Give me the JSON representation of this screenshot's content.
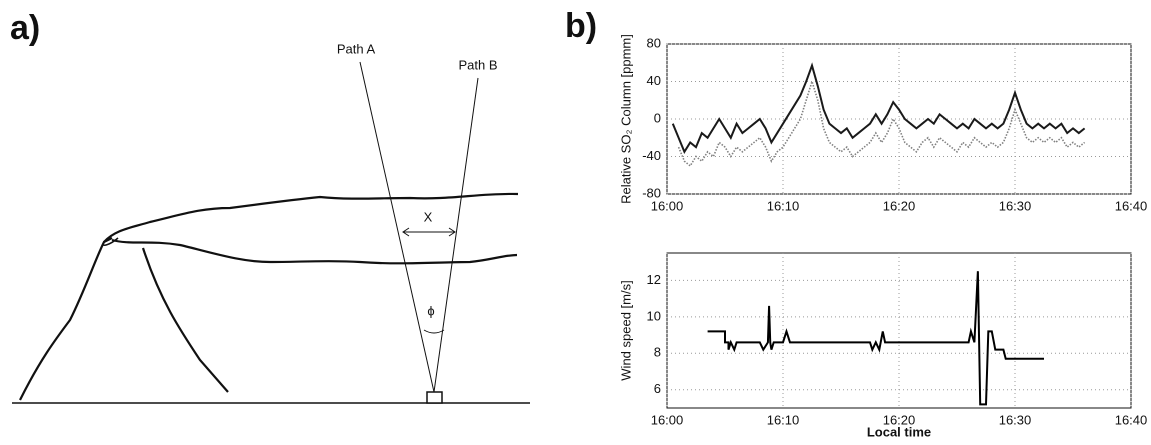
{
  "panel_a": {
    "label": "a)",
    "path_a": "Path A",
    "path_b": "Path B",
    "distance": "X",
    "angle": "ϕ"
  },
  "panel_b_label": "b)",
  "chart_data": [
    {
      "type": "line",
      "ylabel": "Relative SO₂ Column [ppmm]",
      "grid": true,
      "x": [
        0.5,
        1,
        1.5,
        2,
        2.5,
        3,
        3.5,
        4,
        4.5,
        5,
        5.5,
        6,
        6.5,
        7,
        7.5,
        8,
        8.5,
        9,
        9.5,
        10,
        10.5,
        11,
        11.5,
        12,
        12.5,
        13,
        13.5,
        14,
        14.5,
        15,
        15.5,
        16,
        16.5,
        17,
        17.5,
        18,
        18.5,
        19,
        19.5,
        20,
        20.5,
        21,
        21.5,
        22,
        22.5,
        23,
        23.5,
        24,
        24.5,
        25,
        25.5,
        26,
        26.5,
        27,
        27.5,
        28,
        28.5,
        29,
        29.5,
        30,
        30.5,
        31,
        31.5,
        32,
        32.5,
        33,
        33.5,
        34,
        34.5,
        35,
        35.5,
        36
      ],
      "xlim": [
        0,
        40
      ],
      "xticks": [
        {
          "value": 0,
          "label": "16:00"
        },
        {
          "value": 10,
          "label": "16:10"
        },
        {
          "value": 20,
          "label": "16:20"
        },
        {
          "value": 30,
          "label": "16:30"
        },
        {
          "value": 40,
          "label": "16:40"
        }
      ],
      "ylim": [
        -80,
        80
      ],
      "yticks": [
        -80,
        -40,
        0,
        40,
        80
      ],
      "series": [
        {
          "color": "#1a1a1a",
          "linestyle": "solid",
          "values": [
            -5,
            -20,
            -35,
            -25,
            -30,
            -15,
            -20,
            -10,
            0,
            -10,
            -20,
            -5,
            -15,
            -10,
            -5,
            0,
            -10,
            -25,
            -15,
            -5,
            5,
            15,
            25,
            40,
            57,
            35,
            10,
            -5,
            -10,
            -15,
            -10,
            -20,
            -15,
            -10,
            -5,
            5,
            -5,
            5,
            18,
            10,
            0,
            -5,
            -10,
            -5,
            0,
            -5,
            5,
            0,
            -5,
            -10,
            -5,
            -10,
            0,
            -5,
            -10,
            -5,
            -10,
            -5,
            10,
            28,
            10,
            -5,
            -10,
            -5,
            -10,
            -5,
            -10,
            -5,
            -15,
            -10,
            -15,
            -10
          ]
        },
        {
          "color": "#808080",
          "linestyle": "dotted",
          "values": [
            null,
            -30,
            -45,
            -50,
            -40,
            -45,
            -35,
            -40,
            -25,
            -30,
            -40,
            -30,
            -35,
            -30,
            -25,
            -20,
            -30,
            -45,
            -35,
            -30,
            -20,
            -10,
            0,
            20,
            40,
            20,
            -10,
            -25,
            -30,
            -35,
            -30,
            -40,
            -35,
            -30,
            -25,
            -15,
            -25,
            -15,
            0,
            -10,
            -25,
            -30,
            -35,
            -25,
            -20,
            -30,
            -20,
            -25,
            -30,
            -35,
            -25,
            -30,
            -20,
            -25,
            -30,
            -25,
            -30,
            -25,
            -10,
            10,
            -5,
            -20,
            -25,
            -20,
            -25,
            -20,
            -25,
            -20,
            -30,
            -25,
            -30,
            -25
          ]
        }
      ]
    },
    {
      "type": "line",
      "ylabel": "Wind speed [m/s]",
      "xlabel": "Local time",
      "grid": true,
      "x": [
        3.5,
        5,
        5,
        5.3,
        5.3,
        5.5,
        5.8,
        6,
        8,
        8.3,
        8.7,
        8.8,
        8.9,
        9,
        9.2,
        10,
        10.3,
        10.6,
        17.5,
        17.7,
        18,
        18.3,
        18.6,
        18.8,
        26,
        26.2,
        26.5,
        26.8,
        27,
        27.5,
        27.7,
        28,
        28.3,
        29,
        29.2,
        32.5
      ],
      "xlim": [
        0,
        40
      ],
      "xticks": [
        {
          "value": 0,
          "label": "16:00"
        },
        {
          "value": 10,
          "label": "16:10"
        },
        {
          "value": 20,
          "label": "16:20"
        },
        {
          "value": 30,
          "label": "16:30"
        },
        {
          "value": 40,
          "label": "16:40"
        }
      ],
      "ylim": [
        5,
        13.5
      ],
      "yticks": [
        6,
        8,
        10,
        12
      ],
      "series": [
        {
          "color": "#000000",
          "linestyle": "solid",
          "values": [
            9.2,
            9.2,
            8.6,
            8.6,
            8.2,
            8.6,
            8.2,
            8.6,
            8.6,
            8.2,
            8.6,
            10.6,
            8.6,
            8.2,
            8.6,
            8.6,
            9.2,
            8.6,
            8.6,
            8.2,
            8.6,
            8.2,
            9.2,
            8.6,
            8.6,
            9.2,
            8.6,
            12.5,
            5.2,
            5.2,
            9.2,
            9.2,
            8.2,
            8.2,
            7.7,
            7.7
          ]
        }
      ]
    }
  ]
}
